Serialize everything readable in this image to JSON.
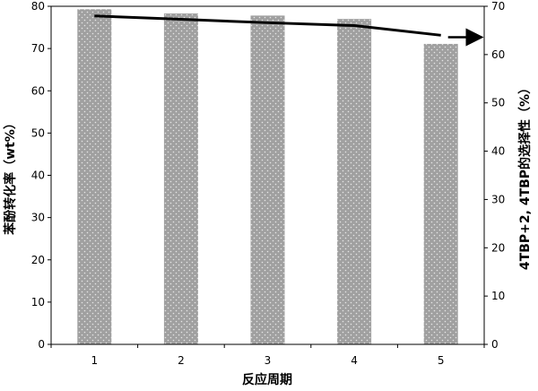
{
  "chart_data": {
    "type": "bar+line",
    "categories": [
      "1",
      "2",
      "3",
      "4",
      "5"
    ],
    "xlabel": "反应周期",
    "ylabel": "苯酚转化率（wt%）",
    "y2label": "4TBP+2, 4TBP的选择性（%）",
    "ylim": [
      0,
      80
    ],
    "y2lim": [
      0,
      70
    ],
    "yticks": [
      "0",
      "10",
      "20",
      "30",
      "40",
      "50",
      "60",
      "70",
      "80"
    ],
    "y2ticks": [
      "0",
      "10",
      "20",
      "30",
      "40",
      "50",
      "60",
      "70"
    ],
    "series": [
      {
        "type": "bar",
        "axis": "left",
        "values": [
          79.3,
          78.3,
          77.8,
          77.0,
          71.1
        ],
        "color": "#a0a0a0"
      },
      {
        "type": "line",
        "axis": "right",
        "values": [
          68.0,
          67.3,
          66.6,
          66.0,
          64.0
        ],
        "color": "#000000",
        "arrow_value": 63.6
      }
    ],
    "grid": false
  }
}
